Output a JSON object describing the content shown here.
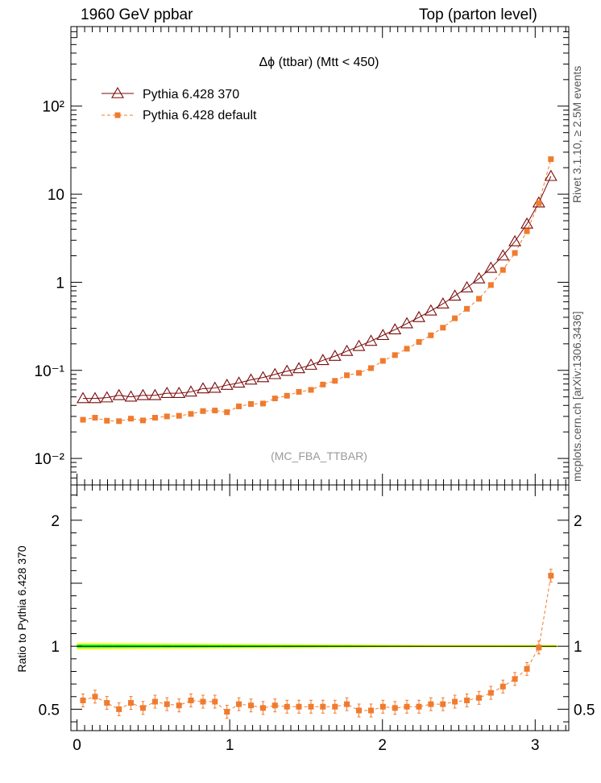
{
  "header": {
    "left": "1960 GeV ppbar",
    "right": "Top (parton level)"
  },
  "side_labels": {
    "rivet": "Rivet 3.1.10, ≥ 2.5M events",
    "source": "mcplots.cern.ch [arXiv:1306.3436]"
  },
  "chart_data": [
    {
      "type": "line",
      "title": "Δϕ (ttbar) (Mtt < 450)",
      "watermark": "(MC_FBA_TTBAR)",
      "xlabel": "",
      "ylabel": "",
      "xlim": [
        -0.04,
        3.22
      ],
      "ylim": [
        0.005,
        800
      ],
      "yscale": "log",
      "y_tick_labels": [
        "10⁻²",
        "10⁻¹",
        "1",
        "10",
        "10²"
      ],
      "y_tick_values": [
        0.01,
        0.1,
        1,
        10,
        100
      ],
      "x_tick_labels": [
        "0",
        "1",
        "2",
        "3"
      ],
      "x_tick_values": [
        0,
        1,
        2,
        3
      ],
      "legend_position": "top-left",
      "x": [
        0.039,
        0.118,
        0.196,
        0.275,
        0.353,
        0.432,
        0.511,
        0.589,
        0.668,
        0.746,
        0.825,
        0.903,
        0.982,
        1.06,
        1.139,
        1.218,
        1.296,
        1.375,
        1.453,
        1.532,
        1.61,
        1.689,
        1.767,
        1.846,
        1.925,
        2.003,
        2.082,
        2.16,
        2.239,
        2.317,
        2.396,
        2.474,
        2.553,
        2.632,
        2.71,
        2.789,
        2.867,
        2.946,
        3.024,
        3.103
      ],
      "series": [
        {
          "name": "Pythia 6.428 370",
          "color": "#7a0a0a",
          "marker": "open-triangle",
          "values": [
            0.048,
            0.048,
            0.049,
            0.052,
            0.05,
            0.052,
            0.052,
            0.055,
            0.055,
            0.057,
            0.062,
            0.063,
            0.068,
            0.072,
            0.078,
            0.083,
            0.09,
            0.098,
            0.105,
            0.115,
            0.13,
            0.145,
            0.165,
            0.188,
            0.215,
            0.25,
            0.29,
            0.34,
            0.4,
            0.475,
            0.57,
            0.7,
            0.87,
            1.1,
            1.45,
            2.0,
            2.9,
            4.6,
            8.0,
            16.0
          ]
        },
        {
          "name": "Pythia 6.428 default",
          "color": "#f07b2e",
          "marker": "filled-square",
          "values": [
            0.0275,
            0.029,
            0.0268,
            0.0265,
            0.0283,
            0.027,
            0.029,
            0.03,
            0.0305,
            0.032,
            0.0345,
            0.035,
            0.0335,
            0.039,
            0.0415,
            0.042,
            0.048,
            0.0515,
            0.057,
            0.06,
            0.069,
            0.076,
            0.088,
            0.0935,
            0.106,
            0.128,
            0.149,
            0.176,
            0.21,
            0.25,
            0.305,
            0.39,
            0.5,
            0.65,
            0.93,
            1.38,
            2.15,
            3.8,
            7.9,
            25.0
          ]
        }
      ]
    },
    {
      "type": "line",
      "xlabel": "",
      "ylabel": "Ratio to Pythia 6.428 370",
      "xlim": [
        -0.04,
        3.22
      ],
      "ylim": [
        0.33,
        2.28
      ],
      "y_tick_labels": [
        "0.5",
        "1",
        "2"
      ],
      "y_tick_values": [
        0.5,
        1,
        2
      ],
      "x_tick_labels": [
        "0",
        "1",
        "2",
        "3"
      ],
      "x_tick_values": [
        0,
        1,
        2,
        3
      ],
      "x": [
        0.039,
        0.118,
        0.196,
        0.275,
        0.353,
        0.432,
        0.511,
        0.589,
        0.668,
        0.746,
        0.825,
        0.903,
        0.982,
        1.06,
        1.139,
        1.218,
        1.296,
        1.375,
        1.453,
        1.532,
        1.61,
        1.689,
        1.767,
        1.846,
        1.925,
        2.003,
        2.082,
        2.16,
        2.239,
        2.317,
        2.396,
        2.474,
        2.553,
        2.632,
        2.71,
        2.789,
        2.867,
        2.946,
        3.024,
        3.103
      ],
      "series": [
        {
          "name": "Pythia 6.428 370",
          "color": "#000000",
          "values": [
            1,
            1,
            1,
            1,
            1,
            1,
            1,
            1,
            1,
            1,
            1,
            1,
            1,
            1,
            1,
            1,
            1,
            1,
            1,
            1,
            1,
            1,
            1,
            1,
            1,
            1,
            1,
            1,
            1,
            1,
            1,
            1,
            1,
            1,
            1,
            1,
            1,
            1,
            1,
            1
          ]
        },
        {
          "name": "Pythia 6.428 default",
          "color": "#f07b2e",
          "values": [
            0.57,
            0.6,
            0.55,
            0.5,
            0.55,
            0.51,
            0.56,
            0.54,
            0.53,
            0.57,
            0.56,
            0.56,
            0.48,
            0.54,
            0.53,
            0.51,
            0.53,
            0.52,
            0.52,
            0.52,
            0.52,
            0.52,
            0.54,
            0.49,
            0.49,
            0.52,
            0.51,
            0.52,
            0.52,
            0.54,
            0.54,
            0.56,
            0.57,
            0.59,
            0.63,
            0.68,
            0.74,
            0.82,
            0.99,
            1.56
          ]
        }
      ],
      "band_colors": {
        "outer": "#ffff33",
        "inner": "#33ff33"
      }
    }
  ]
}
